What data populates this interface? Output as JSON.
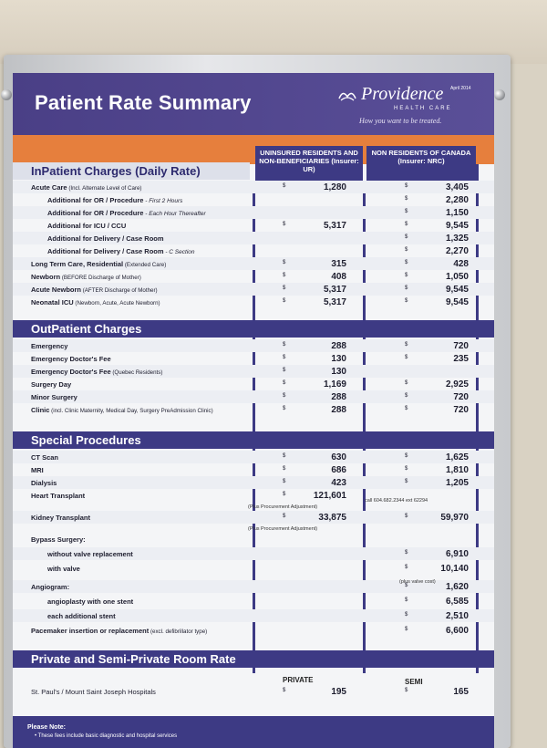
{
  "poster": {
    "title": "Patient Rate Summary",
    "logo_name": "Providence",
    "logo_sub": "HEALTH CARE",
    "logo_tag": "How you want to be treated.",
    "date": "April 2014"
  },
  "columns": {
    "ur": "UNINSURED RESIDENTS AND NON-BENEFICIARIES (Insurer: UR)",
    "nrc": "NON RESIDENTS OF CANADA (Insurer: NRC)"
  },
  "currency": "$",
  "inpatient": {
    "title": "InPatient Charges (Daily Rate)",
    "rows": [
      {
        "name": "Acute Care",
        "note": "(Incl. Alternate Level of Care)",
        "ur": "1,280",
        "nrc": "3,405"
      },
      {
        "name": "Additional for OR / Procedure",
        "it": " - First 2 Hours",
        "ur": "",
        "nrc": "2,280",
        "indent": true
      },
      {
        "name": "Additional for OR / Procedure",
        "it": " - Each Hour Thereafter",
        "ur": "",
        "nrc": "1,150",
        "indent": true
      },
      {
        "name": "Additional for ICU / CCU",
        "ur": "5,317",
        "nrc": "9,545",
        "indent": true
      },
      {
        "name": "Additional for Delivery / Case Room",
        "ur": "",
        "nrc": "1,325",
        "indent": true
      },
      {
        "name": "Additional for Delivery / Case Room",
        "it": " - C Section",
        "ur": "",
        "nrc": "2,270",
        "indent": true
      },
      {
        "name": "Long Term Care, Residential",
        "note": "(Extended Care)",
        "ur": "315",
        "nrc": "428"
      },
      {
        "name": "Newborn",
        "note": "(BEFORE Discharge of Mother)",
        "ur": "408",
        "nrc": "1,050"
      },
      {
        "name": "Acute Newborn",
        "note": "(AFTER Discharge of Mother)",
        "ur": "5,317",
        "nrc": "9,545"
      },
      {
        "name": "Neonatal ICU",
        "note": "(Newborn, Acute, Acute Newborn)",
        "ur": "5,317",
        "nrc": "9,545"
      }
    ]
  },
  "outpatient": {
    "title": "OutPatient Charges",
    "rows": [
      {
        "name": "Emergency",
        "ur": "288",
        "nrc": "720"
      },
      {
        "name": "Emergency Doctor's Fee",
        "ur": "130",
        "nrc": "235"
      },
      {
        "name": "Emergency Doctor's Fee",
        "note": "(Quebec Residents)",
        "ur": "130",
        "nrc": ""
      },
      {
        "name": "Surgery Day",
        "ur": "1,169",
        "nrc": "2,925"
      },
      {
        "name": "Minor Surgery",
        "ur": "288",
        "nrc": "720"
      },
      {
        "name": "Clinic",
        "note": "(incl. Clinic Maternity, Medical Day, Surgery PreAdmission Clinic)",
        "ur": "288",
        "nrc": "720"
      }
    ]
  },
  "special": {
    "title": "Special Procedures",
    "rows": [
      {
        "name": "CT Scan",
        "ur": "630",
        "nrc": "1,625"
      },
      {
        "name": "MRI",
        "ur": "686",
        "nrc": "1,810"
      },
      {
        "name": "Dialysis",
        "ur": "423",
        "nrc": "1,205"
      },
      {
        "name": "Heart Transplant",
        "ur": "121,601",
        "nrc": ""
      },
      {
        "name": "Kidney Transplant",
        "ur": "33,875",
        "nrc": "59,970"
      },
      {
        "name": "Bypass Surgery:",
        "ur": "",
        "nrc": ""
      },
      {
        "name": "without valve replacement",
        "ur": "",
        "nrc": "6,910",
        "indent": true
      },
      {
        "name": "with valve",
        "ur": "",
        "nrc": "10,140",
        "indent": true
      },
      {
        "name": "Angiogram:",
        "ur": "",
        "nrc": "1,620"
      },
      {
        "name": "angioplasty with one stent",
        "ur": "",
        "nrc": "6,585",
        "indent": true
      },
      {
        "name": "each additional stent",
        "ur": "",
        "nrc": "2,510",
        "indent": true
      },
      {
        "name": "Pacemaker insertion or replacement",
        "note": "(excl. defibrillator type)",
        "ur": "",
        "nrc": "6,600"
      }
    ],
    "procurement_note": "(Plus Procurement Adjustment)",
    "heart_nrc_note": "call 604.682.2344 ext 62294",
    "valve_cost_note": "(plus valve cost)"
  },
  "room": {
    "title": "Private and Semi-Private Room Rate",
    "private_label": "PRIVATE",
    "semi_label": "SEMI",
    "hospital": "St. Paul's / Mount Saint Joseph Hospitals",
    "private": "195",
    "semi": "165"
  },
  "footer": {
    "please": "Please Note:",
    "bullet": "• These fees include basic diagnostic and hospital services"
  }
}
